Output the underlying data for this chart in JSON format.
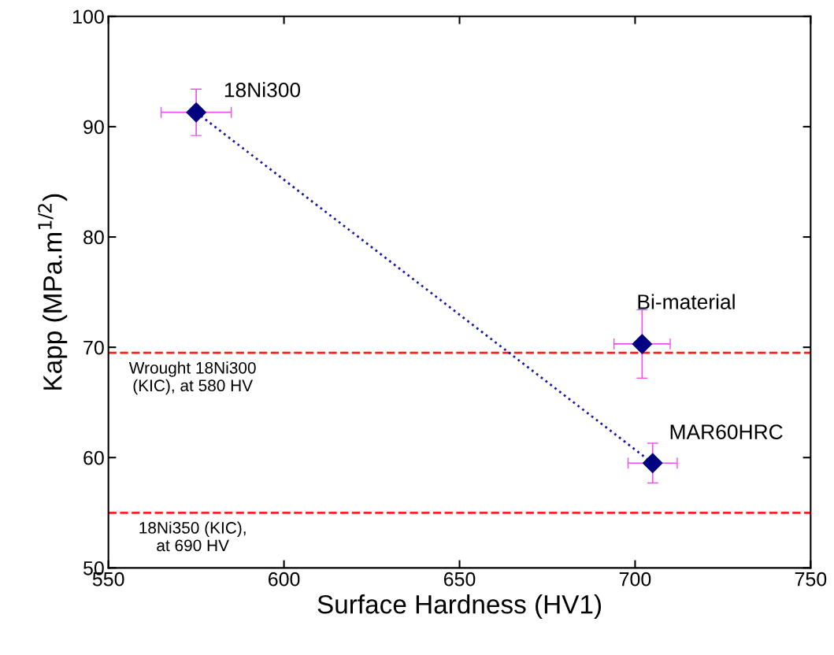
{
  "chart_data": {
    "type": "scatter",
    "xlabel": "Surface Hardness (HV1)",
    "ylabel": "Kapp (MPa.m$^{1/2}$)",
    "xlim": [
      550,
      750
    ],
    "xticks": [
      550,
      600,
      650,
      700,
      750
    ],
    "ylim": [
      50,
      100
    ],
    "yticks": [
      50,
      60,
      70,
      80,
      90,
      100
    ],
    "grid": false,
    "legend": false,
    "series": [
      {
        "type": "line",
        "x": [
          575,
          705
        ],
        "values": [
          91.3,
          59.5
        ],
        "color": "#1a1aa0",
        "line_style": "dotted"
      },
      {
        "x": [
          575,
          702,
          705
        ],
        "values": [
          91.3,
          70.3,
          59.5
        ],
        "color": "#000080",
        "marker": "diamond",
        "errors": [
          2.1,
          3.1,
          1.8
        ],
        "xerrors": [
          10,
          8,
          7
        ]
      }
    ],
    "ref_lines": [
      {
        "axis": "y",
        "value": 69.5,
        "label": "Wrought 18Ni300\n(KIC), at 580 HV",
        "color": "#ff2020",
        "line_style": "dashed"
      },
      {
        "axis": "y",
        "value": 55,
        "label": "18Ni350 (KIC),\nat 690 HV",
        "color": "#ff2020",
        "line_style": "dashed"
      }
    ],
    "annotations": [
      {
        "text": "18Ni300",
        "x": 575,
        "y": 91.3
      },
      {
        "text": "Bi-material",
        "x": 702,
        "y": 70.3
      },
      {
        "text": "MAR60HRC",
        "x": 705,
        "y": 59.5
      }
    ]
  }
}
